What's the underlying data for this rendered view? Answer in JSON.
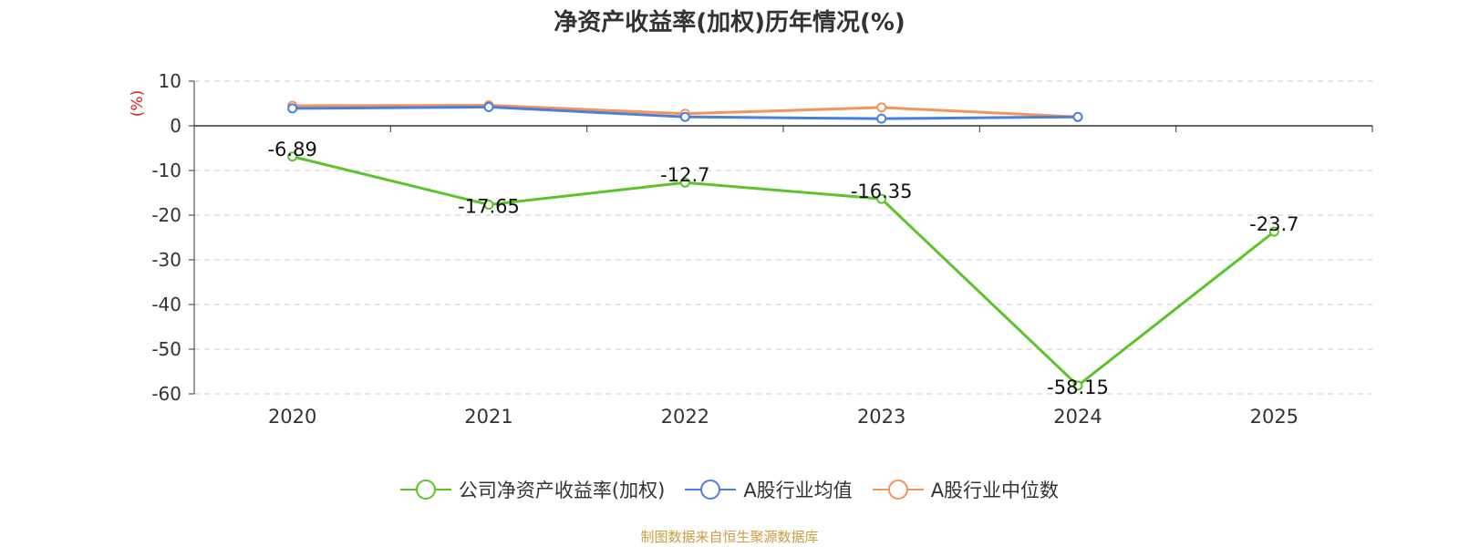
{
  "chart_data": {
    "type": "line",
    "title": "净资产收益率(加权)历年情况(%)",
    "ylabel": "(%)",
    "xlabel": "",
    "categories": [
      "2020",
      "2021",
      "2022",
      "2023",
      "2024",
      "2025"
    ],
    "ylim": [
      -60,
      10
    ],
    "yticks": [
      10,
      0,
      -10,
      -20,
      -30,
      -40,
      -50,
      -60
    ],
    "grid": true,
    "legend_position": "bottom",
    "series": [
      {
        "name": "公司净资产收益率(加权)",
        "color": "#5cc42a",
        "values": [
          -6.89,
          -17.65,
          -12.7,
          -16.35,
          -58.15,
          -23.7
        ],
        "labels": [
          "-6.89",
          "-17.65",
          "-12.7",
          "-16.35",
          "-58.15",
          "-23.7"
        ]
      },
      {
        "name": "A股行业均值",
        "color": "#4a7fdc",
        "values": [
          3.9,
          4.2,
          2.0,
          1.6,
          2.0,
          null
        ]
      },
      {
        "name": "A股行业中位数",
        "color": "#f4945c",
        "values": [
          4.5,
          4.6,
          2.7,
          4.1,
          2.0,
          null
        ]
      }
    ]
  },
  "source": "制图数据来自恒生聚源数据库"
}
